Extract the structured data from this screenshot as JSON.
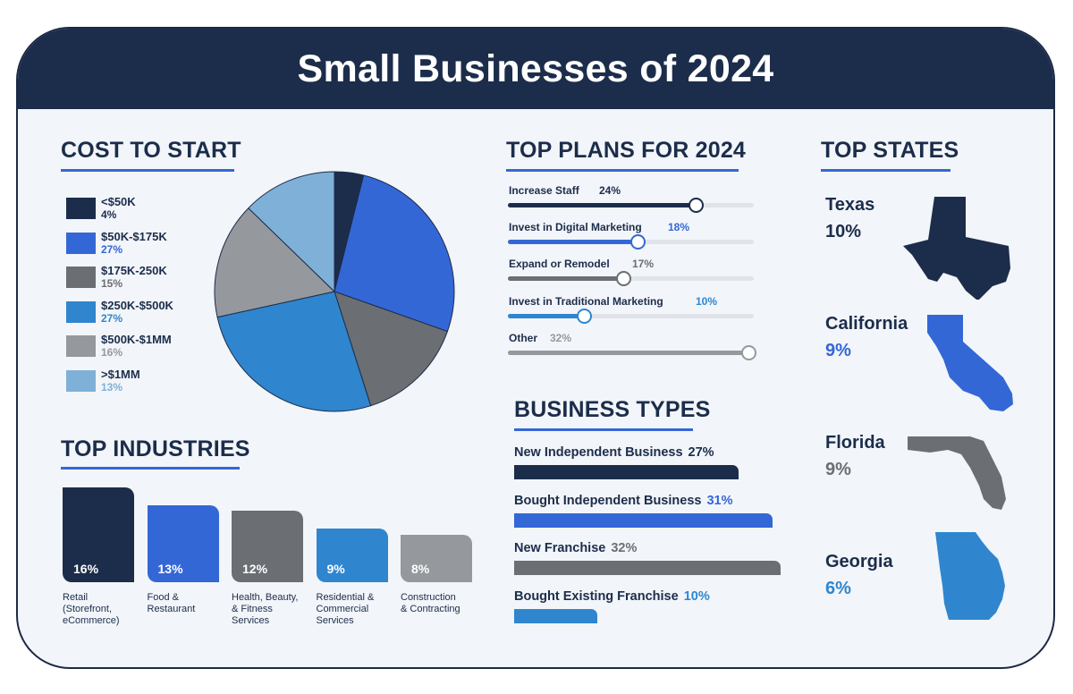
{
  "title": "Small Businesses of 2024",
  "colors": {
    "navy": "#1c2d4b",
    "blue": "#3467d6",
    "dark_gray": "#6b6e73",
    "mid_blue": "#2f86cf",
    "gray": "#95989d",
    "light_blue": "#7fb0d8",
    "accent_line": "#3467d6"
  },
  "cost_to_start": {
    "title": "COST TO START",
    "items": [
      {
        "label": "<$50K",
        "value": "4%",
        "color": "#1c2d4b",
        "value_color": "#1c2d4b"
      },
      {
        "label": "$50K-$175K",
        "value": "27%",
        "color": "#3467d6",
        "value_color": "#3467d6"
      },
      {
        "label": "$175K-250K",
        "value": "15%",
        "color": "#6b6e73",
        "value_color": "#6b6e73"
      },
      {
        "label": "$250K-$500K",
        "value": "27%",
        "color": "#2f86cf",
        "value_color": "#2f86cf"
      },
      {
        "label": "$500K-$1MM",
        "value": "16%",
        "color": "#95989d",
        "value_color": "#95989d"
      },
      {
        "label": ">$1MM",
        "value": "13%",
        "color": "#7fb0d8",
        "value_color": "#7fb0d8"
      }
    ]
  },
  "chart_data": [
    {
      "type": "pie",
      "title": "COST TO START",
      "categories": [
        "<$50K",
        "$50K-$175K",
        "$175K-250K",
        "$250K-$500K",
        "$500K-$1MM",
        ">$1MM"
      ],
      "values": [
        4,
        27,
        15,
        27,
        16,
        13
      ],
      "legend": "left"
    },
    {
      "type": "bar",
      "title": "TOP INDUSTRIES",
      "categories": [
        "Retail (Storefront, eCommerce)",
        "Food & Restaurant",
        "Health, Beauty, & Fitness Services",
        "Residential & Commercial Services",
        "Construction & Contracting"
      ],
      "values": [
        16,
        13,
        12,
        9,
        8
      ]
    },
    {
      "type": "bar",
      "title": "TOP PLANS FOR 2024",
      "categories": [
        "Increase Staff",
        "Invest in Digital Marketing",
        "Expand or Remodel",
        "Invest in Traditional Marketing",
        "Other"
      ],
      "values": [
        24,
        18,
        17,
        10,
        32
      ]
    },
    {
      "type": "bar",
      "title": "BUSINESS TYPES",
      "categories": [
        "New Independent Business",
        "Bought Independent Business",
        "New Franchise",
        "Bought Existing Franchise"
      ],
      "values": [
        27,
        31,
        32,
        10
      ]
    },
    {
      "type": "table",
      "title": "TOP STATES",
      "categories": [
        "Texas",
        "California",
        "Florida",
        "Georgia"
      ],
      "values": [
        10,
        9,
        9,
        6
      ]
    }
  ],
  "top_industries": {
    "title": "TOP INDUSTRIES",
    "items": [
      {
        "pct": "16%",
        "value": 16,
        "label_lines": [
          "Retail",
          "(Storefront,",
          "eCommerce)"
        ],
        "color": "#1c2d4b"
      },
      {
        "pct": "13%",
        "value": 13,
        "label_lines": [
          "Food &",
          "Restaurant"
        ],
        "color": "#3467d6"
      },
      {
        "pct": "12%",
        "value": 12,
        "label_lines": [
          "Health, Beauty,",
          "& Fitness",
          "Services"
        ],
        "color": "#6b6e73"
      },
      {
        "pct": "9%",
        "value": 9,
        "label_lines": [
          "Residential &",
          "Commercial",
          "Services"
        ],
        "color": "#2f86cf"
      },
      {
        "pct": "8%",
        "value": 8,
        "label_lines": [
          "Construction",
          "& Contracting"
        ],
        "color": "#95989d"
      }
    ]
  },
  "top_plans": {
    "title": "TOP PLANS FOR 2024",
    "items": [
      {
        "label": "Increase Staff",
        "pct": "24%",
        "value": 24,
        "color": "#1c2d4b",
        "pct_color": "#1c2d4b",
        "fill": 0.78
      },
      {
        "label": "Invest in Digital Marketing",
        "pct": "18%",
        "value": 18,
        "color": "#3467d6",
        "pct_color": "#3467d6",
        "fill": 0.54
      },
      {
        "label": "Expand or Remodel",
        "pct": "17%",
        "value": 17,
        "color": "#6b6e73",
        "pct_color": "#6b6e73",
        "fill": 0.48
      },
      {
        "label": "Invest in Traditional Marketing",
        "pct": "10%",
        "value": 10,
        "color": "#2f86cf",
        "pct_color": "#2f86cf",
        "fill": 0.32
      },
      {
        "label": "Other",
        "pct": "32%",
        "value": 32,
        "color": "#95989d",
        "pct_color": "#95989d",
        "fill": 1.0
      }
    ]
  },
  "business_types": {
    "title": "BUSINESS TYPES",
    "items": [
      {
        "label": "New Independent Business",
        "pct": "27%",
        "value": 27,
        "color": "#1c2d4b",
        "pct_color": "#1c2d4b"
      },
      {
        "label": "Bought Independent Business",
        "pct": "31%",
        "value": 31,
        "color": "#3467d6",
        "pct_color": "#3467d6"
      },
      {
        "label": "New Franchise",
        "pct": "32%",
        "value": 32,
        "color": "#6b6e73",
        "pct_color": "#6b6e73"
      },
      {
        "label": "Bought Existing Franchise",
        "pct": "10%",
        "value": 10,
        "color": "#2f86cf",
        "pct_color": "#2f86cf"
      }
    ]
  },
  "top_states": {
    "title": "TOP STATES",
    "items": [
      {
        "name": "Texas",
        "pct": "10%",
        "color": "#1c2d4b",
        "icon": "texas-map-icon"
      },
      {
        "name": "California",
        "pct": "9%",
        "color": "#3467d6",
        "icon": "california-map-icon"
      },
      {
        "name": "Florida",
        "pct": "9%",
        "color": "#6b6e73",
        "icon": "florida-map-icon"
      },
      {
        "name": "Georgia",
        "pct": "6%",
        "color": "#2f86cf",
        "icon": "georgia-map-icon"
      }
    ]
  }
}
